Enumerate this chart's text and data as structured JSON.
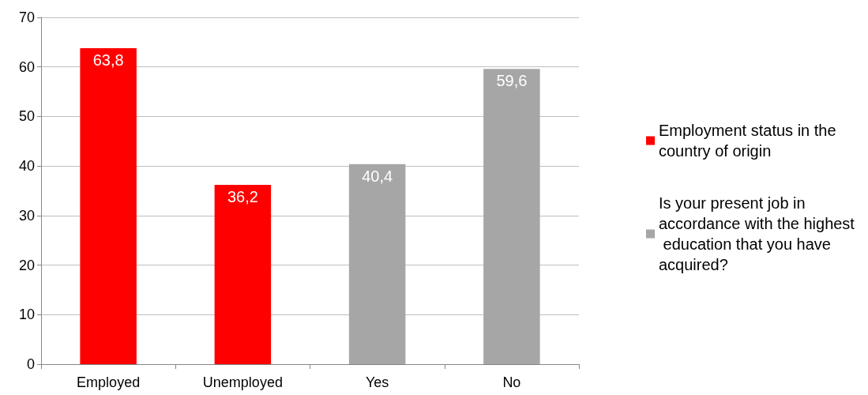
{
  "chart_data": {
    "type": "bar",
    "categories": [
      "Employed",
      "Unemployed",
      "Yes",
      "No"
    ],
    "series": [
      {
        "name": "Employment status in the country of origin",
        "color": "#ff0000",
        "values": [
          63.8,
          36.2,
          null,
          null
        ],
        "value_labels": [
          "63,8",
          "36,2",
          null,
          null
        ]
      },
      {
        "name": "Is your present job in accordance with the highest education that you have acquired?",
        "color": "#a6a6a6",
        "values": [
          null,
          null,
          40.4,
          59.6
        ],
        "value_labels": [
          null,
          null,
          "40,4",
          "59,6"
        ]
      }
    ],
    "ylim": [
      0,
      70
    ],
    "yticks": [
      0,
      10,
      20,
      30,
      40,
      50,
      60,
      70
    ],
    "grid": "y",
    "legend": "right"
  }
}
